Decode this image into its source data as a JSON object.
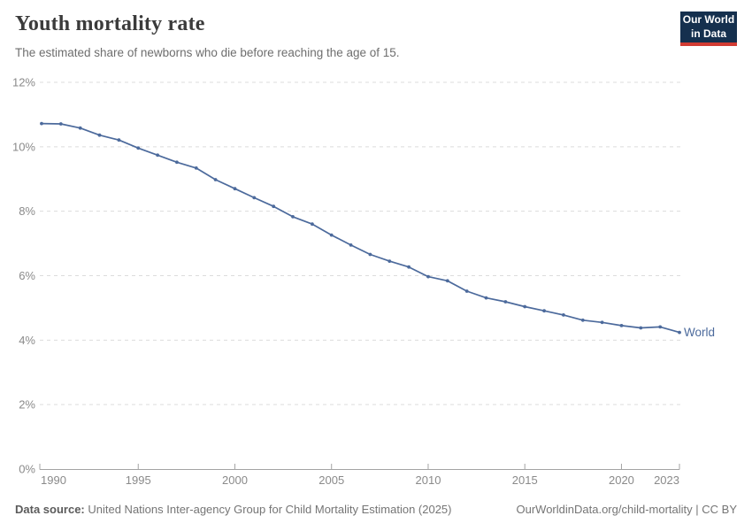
{
  "header": {
    "title": "Youth mortality rate",
    "subtitle": "The estimated share of newborns who die before reaching the age of 15.",
    "logo": {
      "line1": "Our World",
      "line2": "in Data",
      "bg_color": "#15304e",
      "bar_color": "#d23b33"
    }
  },
  "chart_data": {
    "type": "line",
    "title": "Youth mortality rate",
    "xlabel": "",
    "ylabel": "",
    "xlim": [
      1990,
      2023
    ],
    "ylim": [
      0,
      12
    ],
    "grid": "horizontal-dashed",
    "legend_position": "end-of-line-label",
    "xticks": [
      1990,
      1995,
      2000,
      2005,
      2010,
      2015,
      2020,
      2023
    ],
    "yticks": [
      0,
      2,
      4,
      6,
      8,
      10,
      12
    ],
    "ytick_suffix": "%",
    "series": [
      {
        "name": "World",
        "color": "#4C6A9C",
        "x": [
          1990,
          1991,
          1992,
          1993,
          1994,
          1995,
          1996,
          1997,
          1998,
          1999,
          2000,
          2001,
          2002,
          2003,
          2004,
          2005,
          2006,
          2007,
          2008,
          2009,
          2010,
          2011,
          2012,
          2013,
          2014,
          2015,
          2016,
          2017,
          2018,
          2019,
          2020,
          2021,
          2022,
          2023
        ],
        "values": [
          10.72,
          10.71,
          10.58,
          10.36,
          10.21,
          9.96,
          9.74,
          9.52,
          9.34,
          8.98,
          8.7,
          8.42,
          8.15,
          7.83,
          7.6,
          7.26,
          6.95,
          6.66,
          6.45,
          6.27,
          5.97,
          5.84,
          5.52,
          5.31,
          5.19,
          5.04,
          4.91,
          4.78,
          4.62,
          4.55,
          4.45,
          4.38,
          4.41,
          4.24
        ]
      }
    ],
    "colors": {
      "gridline": "#dcdcdc",
      "axis": "#a3a3a3",
      "tick_text": "#8a8a8a"
    }
  },
  "footer": {
    "source_label": "Data source:",
    "source_text": " United Nations Inter-agency Group for Child Mortality Estimation (2025)",
    "link": "OurWorldinData.org/child-mortality | CC BY"
  }
}
